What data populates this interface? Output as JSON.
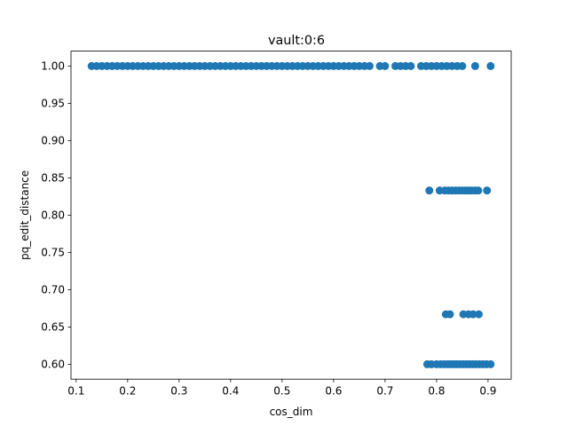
{
  "chart_data": {
    "type": "scatter",
    "title": "vault:0:6",
    "xlabel": "cos_dim",
    "ylabel": "pq_edit_distance",
    "xlim": [
      0.09,
      0.945
    ],
    "ylim": [
      0.58,
      1.02
    ],
    "xticks": [
      0.1,
      0.2,
      0.3,
      0.4,
      0.5,
      0.6,
      0.7,
      0.8,
      0.9
    ],
    "yticks": [
      0.6,
      0.65,
      0.7,
      0.75,
      0.8,
      0.85,
      0.9,
      0.95,
      1.0
    ],
    "xtick_labels": [
      "0.1",
      "0.2",
      "0.3",
      "0.4",
      "0.5",
      "0.6",
      "0.7",
      "0.8",
      "0.9"
    ],
    "ytick_labels": [
      "0.60",
      "0.65",
      "0.70",
      "0.75",
      "0.80",
      "0.85",
      "0.90",
      "0.95",
      "1.00"
    ],
    "marker_color": "#1f77b4",
    "grid": false,
    "legend": "none",
    "series": [
      {
        "values": [
          {
            "x": 0.13,
            "y": 1.0
          },
          {
            "x": 0.14,
            "y": 1.0
          },
          {
            "x": 0.15,
            "y": 1.0
          },
          {
            "x": 0.16,
            "y": 1.0
          },
          {
            "x": 0.17,
            "y": 1.0
          },
          {
            "x": 0.18,
            "y": 1.0
          },
          {
            "x": 0.19,
            "y": 1.0
          },
          {
            "x": 0.2,
            "y": 1.0
          },
          {
            "x": 0.21,
            "y": 1.0
          },
          {
            "x": 0.22,
            "y": 1.0
          },
          {
            "x": 0.23,
            "y": 1.0
          },
          {
            "x": 0.24,
            "y": 1.0
          },
          {
            "x": 0.25,
            "y": 1.0
          },
          {
            "x": 0.26,
            "y": 1.0
          },
          {
            "x": 0.27,
            "y": 1.0
          },
          {
            "x": 0.28,
            "y": 1.0
          },
          {
            "x": 0.29,
            "y": 1.0
          },
          {
            "x": 0.3,
            "y": 1.0
          },
          {
            "x": 0.31,
            "y": 1.0
          },
          {
            "x": 0.32,
            "y": 1.0
          },
          {
            "x": 0.33,
            "y": 1.0
          },
          {
            "x": 0.34,
            "y": 1.0
          },
          {
            "x": 0.35,
            "y": 1.0
          },
          {
            "x": 0.36,
            "y": 1.0
          },
          {
            "x": 0.37,
            "y": 1.0
          },
          {
            "x": 0.38,
            "y": 1.0
          },
          {
            "x": 0.39,
            "y": 1.0
          },
          {
            "x": 0.4,
            "y": 1.0
          },
          {
            "x": 0.41,
            "y": 1.0
          },
          {
            "x": 0.42,
            "y": 1.0
          },
          {
            "x": 0.43,
            "y": 1.0
          },
          {
            "x": 0.44,
            "y": 1.0
          },
          {
            "x": 0.45,
            "y": 1.0
          },
          {
            "x": 0.46,
            "y": 1.0
          },
          {
            "x": 0.47,
            "y": 1.0
          },
          {
            "x": 0.48,
            "y": 1.0
          },
          {
            "x": 0.49,
            "y": 1.0
          },
          {
            "x": 0.5,
            "y": 1.0
          },
          {
            "x": 0.51,
            "y": 1.0
          },
          {
            "x": 0.52,
            "y": 1.0
          },
          {
            "x": 0.53,
            "y": 1.0
          },
          {
            "x": 0.54,
            "y": 1.0
          },
          {
            "x": 0.55,
            "y": 1.0
          },
          {
            "x": 0.56,
            "y": 1.0
          },
          {
            "x": 0.57,
            "y": 1.0
          },
          {
            "x": 0.58,
            "y": 1.0
          },
          {
            "x": 0.59,
            "y": 1.0
          },
          {
            "x": 0.6,
            "y": 1.0
          },
          {
            "x": 0.61,
            "y": 1.0
          },
          {
            "x": 0.62,
            "y": 1.0
          },
          {
            "x": 0.63,
            "y": 1.0
          },
          {
            "x": 0.64,
            "y": 1.0
          },
          {
            "x": 0.65,
            "y": 1.0
          },
          {
            "x": 0.66,
            "y": 1.0
          },
          {
            "x": 0.67,
            "y": 1.0
          },
          {
            "x": 0.69,
            "y": 1.0
          },
          {
            "x": 0.7,
            "y": 1.0
          },
          {
            "x": 0.72,
            "y": 1.0
          },
          {
            "x": 0.73,
            "y": 1.0
          },
          {
            "x": 0.74,
            "y": 1.0
          },
          {
            "x": 0.75,
            "y": 1.0
          },
          {
            "x": 0.77,
            "y": 1.0
          },
          {
            "x": 0.78,
            "y": 1.0
          },
          {
            "x": 0.79,
            "y": 1.0
          },
          {
            "x": 0.8,
            "y": 1.0
          },
          {
            "x": 0.81,
            "y": 1.0
          },
          {
            "x": 0.82,
            "y": 1.0
          },
          {
            "x": 0.83,
            "y": 1.0
          },
          {
            "x": 0.84,
            "y": 1.0
          },
          {
            "x": 0.85,
            "y": 1.0
          },
          {
            "x": 0.875,
            "y": 1.0
          },
          {
            "x": 0.905,
            "y": 1.0
          },
          {
            "x": 0.786,
            "y": 0.833
          },
          {
            "x": 0.806,
            "y": 0.833
          },
          {
            "x": 0.816,
            "y": 0.833
          },
          {
            "x": 0.823,
            "y": 0.833
          },
          {
            "x": 0.83,
            "y": 0.833
          },
          {
            "x": 0.837,
            "y": 0.833
          },
          {
            "x": 0.844,
            "y": 0.833
          },
          {
            "x": 0.85,
            "y": 0.833
          },
          {
            "x": 0.856,
            "y": 0.833
          },
          {
            "x": 0.862,
            "y": 0.833
          },
          {
            "x": 0.868,
            "y": 0.833
          },
          {
            "x": 0.875,
            "y": 0.833
          },
          {
            "x": 0.881,
            "y": 0.833
          },
          {
            "x": 0.898,
            "y": 0.833
          },
          {
            "x": 0.818,
            "y": 0.667
          },
          {
            "x": 0.826,
            "y": 0.667
          },
          {
            "x": 0.852,
            "y": 0.667
          },
          {
            "x": 0.862,
            "y": 0.667
          },
          {
            "x": 0.871,
            "y": 0.667
          },
          {
            "x": 0.882,
            "y": 0.667
          },
          {
            "x": 0.782,
            "y": 0.6
          },
          {
            "x": 0.79,
            "y": 0.6
          },
          {
            "x": 0.8,
            "y": 0.6
          },
          {
            "x": 0.808,
            "y": 0.6
          },
          {
            "x": 0.815,
            "y": 0.6
          },
          {
            "x": 0.822,
            "y": 0.6
          },
          {
            "x": 0.828,
            "y": 0.6
          },
          {
            "x": 0.834,
            "y": 0.6
          },
          {
            "x": 0.84,
            "y": 0.6
          },
          {
            "x": 0.846,
            "y": 0.6
          },
          {
            "x": 0.852,
            "y": 0.6
          },
          {
            "x": 0.858,
            "y": 0.6
          },
          {
            "x": 0.864,
            "y": 0.6
          },
          {
            "x": 0.87,
            "y": 0.6
          },
          {
            "x": 0.876,
            "y": 0.6
          },
          {
            "x": 0.883,
            "y": 0.6
          },
          {
            "x": 0.89,
            "y": 0.6
          },
          {
            "x": 0.897,
            "y": 0.6
          },
          {
            "x": 0.905,
            "y": 0.6
          }
        ]
      }
    ]
  }
}
